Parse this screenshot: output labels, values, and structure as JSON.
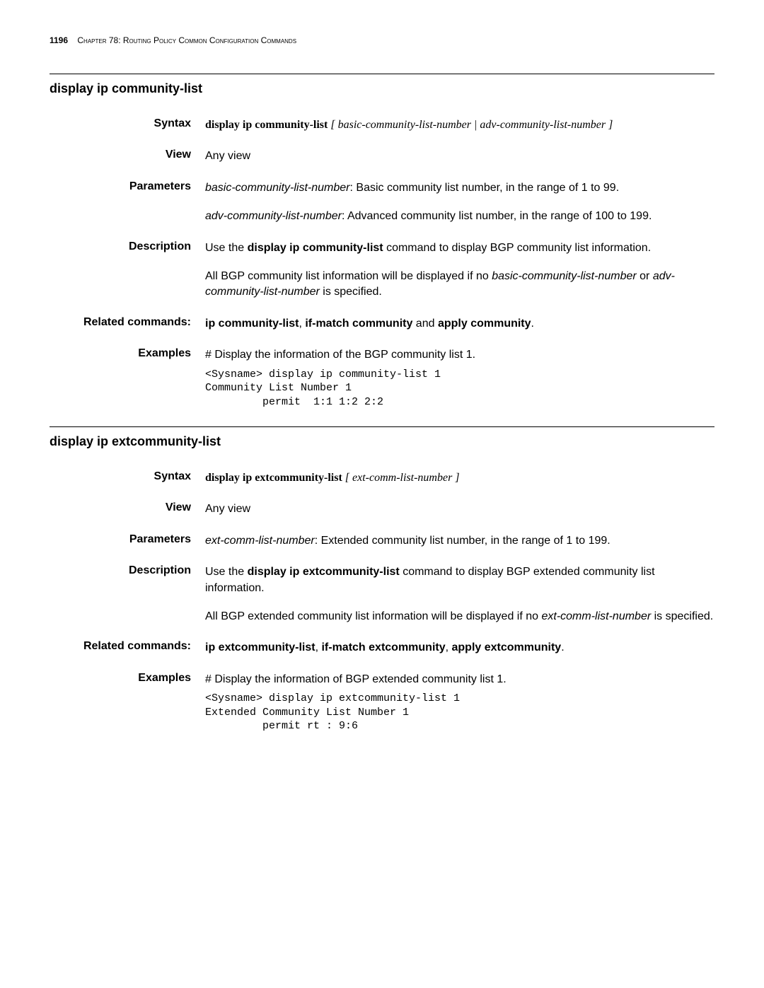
{
  "header": {
    "page_number": "1196",
    "chapter_prefix": "Chapter 78: ",
    "chapter_title": "Routing Policy Common Configuration Commands"
  },
  "sections": [
    {
      "title": "display ip community-list",
      "syntax": {
        "label": "Syntax",
        "cmd": "display ip community-list",
        "args": " [ basic-community-list-number | adv-community-list-number ]"
      },
      "view": {
        "label": "View",
        "text": "Any view"
      },
      "parameters": {
        "label": "Parameters",
        "items": [
          {
            "name": "basic-community-list-number",
            "desc": ": Basic community list number, in the range of 1 to 99."
          },
          {
            "name": "adv-community-list-number",
            "desc": ": Advanced community list number, in the range of 100 to 199."
          }
        ]
      },
      "description": {
        "label": "Description",
        "para1_pre": "Use the ",
        "para1_bold": "display ip community-list",
        "para1_post": " command to display BGP community list information.",
        "para2_pre": "All BGP community list information will be displayed if no ",
        "para2_it1": "basic-community-list-number",
        "para2_mid": " or ",
        "para2_it2": "adv-community-list-number",
        "para2_post": " is specified."
      },
      "related": {
        "label": "Related commands:",
        "b1": "ip community-list",
        "t1": ", ",
        "b2": "if-match community",
        "t2": " and ",
        "b3": "apply community",
        "t3": "."
      },
      "examples": {
        "label": "Examples",
        "intro": "# Display the information of the BGP community list 1.",
        "code": "<Sysname> display ip community-list 1\nCommunity List Number 1\n         permit  1:1 1:2 2:2"
      }
    },
    {
      "title": "display ip extcommunity-list",
      "syntax": {
        "label": "Syntax",
        "cmd": "display ip extcommunity-list",
        "args": " [ ext-comm-list-number ]"
      },
      "view": {
        "label": "View",
        "text": "Any view"
      },
      "parameters": {
        "label": "Parameters",
        "items": [
          {
            "name": "ext-comm-list-number",
            "desc": ": Extended community list number, in the range of 1 to 199."
          }
        ]
      },
      "description": {
        "label": "Description",
        "para1_pre": "Use the ",
        "para1_bold": "display ip extcommunity-list",
        "para1_post": " command to display BGP extended community list information.",
        "para2_pre": "All BGP extended community list information will be displayed if no ",
        "para2_it1": "ext-comm-list-number",
        "para2_mid": "",
        "para2_it2": "",
        "para2_post": " is specified."
      },
      "related": {
        "label": "Related commands:",
        "b1": "ip extcommunity-list",
        "t1": ", ",
        "b2": "if-match extcommunity",
        "t2": ", ",
        "b3": "apply extcommunity",
        "t3": "."
      },
      "examples": {
        "label": "Examples",
        "intro": "# Display the information of BGP extended community list 1.",
        "code": "<Sysname> display ip extcommunity-list 1\nExtended Community List Number 1\n         permit rt : 9:6"
      }
    }
  ]
}
